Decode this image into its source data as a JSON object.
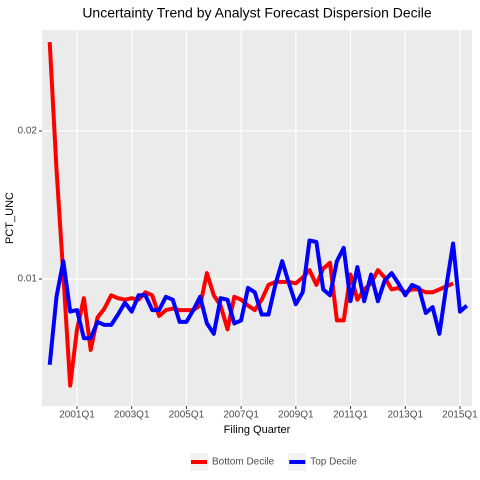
{
  "chart_data": {
    "type": "line",
    "title": "Uncertainty Trend by Analyst Forecast Dispersion Decile",
    "x_label": "Filing Quarter",
    "y_label": "PCT_UNC",
    "x": [
      2000,
      2000.25,
      2000.5,
      2000.75,
      2001,
      2001.25,
      2001.5,
      2001.75,
      2002,
      2002.25,
      2002.5,
      2002.75,
      2003,
      2003.25,
      2003.5,
      2003.75,
      2004,
      2004.25,
      2004.5,
      2004.75,
      2005,
      2005.25,
      2005.5,
      2005.75,
      2006,
      2006.25,
      2006.5,
      2006.75,
      2007,
      2007.25,
      2007.5,
      2007.75,
      2008,
      2008.25,
      2008.5,
      2008.75,
      2009,
      2009.25,
      2009.5,
      2009.75,
      2010,
      2010.25,
      2010.5,
      2010.75,
      2011,
      2011.25,
      2011.5,
      2011.75,
      2012,
      2012.25,
      2012.5,
      2012.75,
      2013,
      2013.25,
      2013.5,
      2013.75,
      2014,
      2014.25,
      2014.5,
      2014.75,
      2015,
      2015.25
    ],
    "series": [
      {
        "name": "Bottom Decile",
        "color": "#ff0000",
        "values": [
          0.026,
          0.0174,
          0.0103,
          0.0028,
          0.0066,
          0.0087,
          0.0052,
          0.0074,
          0.008,
          0.0089,
          0.0087,
          0.0086,
          0.0087,
          0.0086,
          0.0091,
          0.0089,
          0.0075,
          0.0079,
          0.008,
          0.0079,
          0.0079,
          0.0079,
          0.0082,
          0.0104,
          0.0089,
          0.0082,
          0.0066,
          0.0088,
          0.0086,
          0.0082,
          0.0079,
          0.0086,
          0.0096,
          0.0098,
          0.0098,
          0.0098,
          0.0097,
          0.0101,
          0.0106,
          0.0096,
          0.0107,
          0.0111,
          0.0072,
          0.0072,
          0.0103,
          0.0086,
          0.0093,
          0.0097,
          0.0106,
          0.0101,
          0.0093,
          0.0094,
          0.0091,
          0.0093,
          0.0093,
          0.0091,
          0.0091,
          0.0093,
          0.0095,
          0.0097,
          null,
          null
        ]
      },
      {
        "name": "Top Decile",
        "color": "#0000ff",
        "values": [
          0.0042,
          0.0088,
          0.0112,
          0.0078,
          0.0079,
          0.006,
          0.006,
          0.0071,
          0.0069,
          0.0069,
          0.0076,
          0.0084,
          0.0078,
          0.0089,
          0.0089,
          0.0079,
          0.0079,
          0.0088,
          0.0086,
          0.0071,
          0.0071,
          0.0079,
          0.0088,
          0.007,
          0.0063,
          0.0087,
          0.0086,
          0.007,
          0.0072,
          0.0094,
          0.0091,
          0.0076,
          0.0076,
          0.0096,
          0.0112,
          0.0097,
          0.0083,
          0.0091,
          0.0126,
          0.0125,
          0.0093,
          0.0089,
          0.0112,
          0.0121,
          0.0085,
          0.0108,
          0.0085,
          0.0103,
          0.0085,
          0.0099,
          0.0104,
          0.0097,
          0.0089,
          0.0096,
          0.0094,
          0.0077,
          0.0081,
          0.0063,
          0.0095,
          0.0124,
          0.0078,
          0.0082
        ]
      }
    ],
    "xlim": [
      1999.72,
      2015.44
    ],
    "xticks": [
      {
        "value": 2001,
        "label": "2001Q1"
      },
      {
        "value": 2003,
        "label": "2003Q1"
      },
      {
        "value": 2005,
        "label": "2005Q1"
      },
      {
        "value": 2007,
        "label": "2007Q1"
      },
      {
        "value": 2009,
        "label": "2009Q1"
      },
      {
        "value": 2011,
        "label": "2011Q1"
      },
      {
        "value": 2013,
        "label": "2013Q1"
      },
      {
        "value": 2015,
        "label": "2015Q1"
      }
    ],
    "ylim": [
      0.00142,
      0.02682
    ],
    "yticks": [
      0.01,
      0.02
    ],
    "grid": true,
    "legend_position": "bottom"
  }
}
